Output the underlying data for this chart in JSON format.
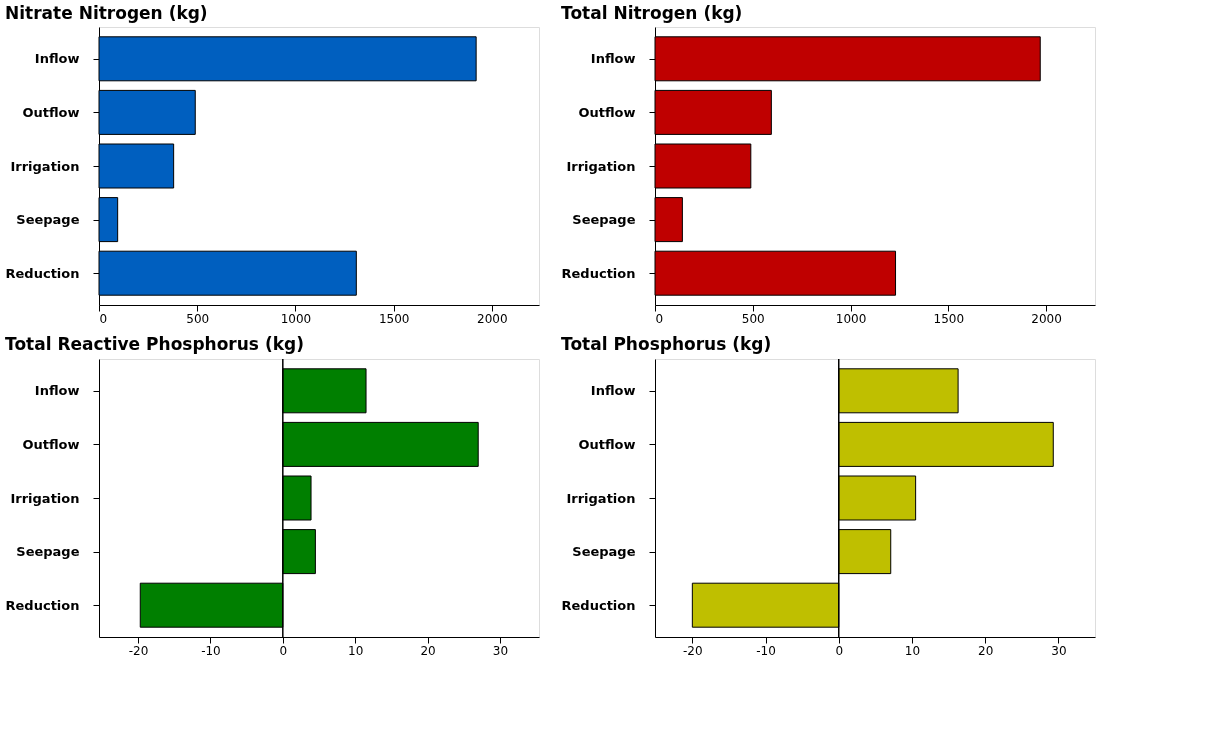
{
  "chart_data": [
    {
      "type": "bar",
      "orientation": "horizontal",
      "title": "Nitrate Nitrogen (kg)",
      "categories": [
        "Inflow",
        "Outflow",
        "Irrigation",
        "Seepage",
        "Reduction"
      ],
      "values": [
        1920,
        490,
        380,
        95,
        1310
      ],
      "color": "#005fbf",
      "xlim": [
        0,
        2240
      ],
      "xticks": [
        0,
        500,
        1000,
        1500,
        2000
      ],
      "grid": false
    },
    {
      "type": "bar",
      "orientation": "horizontal",
      "title": "Total Nitrogen (kg)",
      "categories": [
        "Inflow",
        "Outflow",
        "Irrigation",
        "Seepage",
        "Reduction"
      ],
      "values": [
        1970,
        595,
        490,
        140,
        1230
      ],
      "color": "#bf0000",
      "xlim": [
        0,
        2250
      ],
      "xticks": [
        0,
        500,
        1000,
        1500,
        2000
      ],
      "grid": false
    },
    {
      "type": "bar",
      "orientation": "horizontal",
      "title": "Total Reactive Phosphorus (kg)",
      "categories": [
        "Inflow",
        "Outflow",
        "Irrigation",
        "Seepage",
        "Reduction"
      ],
      "values": [
        11.5,
        27,
        3.9,
        4.5,
        -19.7
      ],
      "color": "#007f00",
      "xlim": [
        -25.4,
        35.4
      ],
      "xticks": [
        -20,
        -10,
        0,
        10,
        20,
        30
      ],
      "grid": false,
      "ref_lines": [
        {
          "axis": "x",
          "value": 0,
          "color": "#000000"
        }
      ]
    },
    {
      "type": "bar",
      "orientation": "horizontal",
      "title": "Total Phosphorus (kg)",
      "categories": [
        "Inflow",
        "Outflow",
        "Irrigation",
        "Seepage",
        "Reduction"
      ],
      "values": [
        16.3,
        29.3,
        10.5,
        7.1,
        -20
      ],
      "color": "#bfbf00",
      "xlim": [
        -25.1,
        35
      ],
      "xticks": [
        -20,
        -10,
        0,
        10,
        20,
        30
      ],
      "grid": false,
      "ref_lines": [
        {
          "axis": "x",
          "value": 0,
          "color": "#000000"
        }
      ]
    }
  ]
}
